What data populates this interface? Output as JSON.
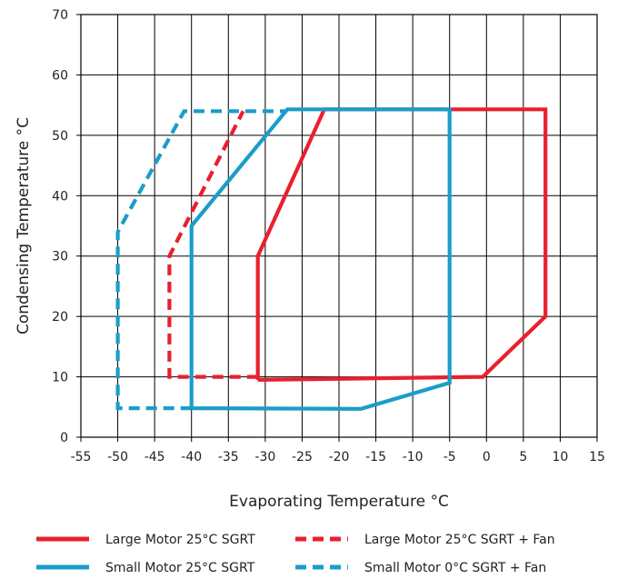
{
  "chart_data": {
    "type": "line",
    "title": "",
    "xlabel": "Evaporating Temperature °C",
    "ylabel": "Condensing Temperature °C",
    "xlim": [
      -55,
      15
    ],
    "ylim": [
      0,
      70
    ],
    "xticks": [
      -55,
      -50,
      -45,
      -40,
      -35,
      -30,
      -25,
      -20,
      -15,
      -10,
      -5,
      0,
      5,
      10,
      15
    ],
    "yticks": [
      0,
      10,
      20,
      30,
      40,
      50,
      60,
      70
    ],
    "grid": true,
    "legend_position": "bottom",
    "series": [
      {
        "name": "Large Motor 25°C SGRT",
        "color": "#e8202e",
        "style": "solid",
        "points": [
          [
            -31,
            9.5
          ],
          [
            -0.5,
            10
          ],
          [
            8,
            20
          ],
          [
            8,
            54.3
          ],
          [
            -22,
            54.3
          ],
          [
            -31,
            30
          ],
          [
            -31,
            9.5
          ]
        ]
      },
      {
        "name": "Large Motor 25°C SGRT + Fan",
        "color": "#e8202e",
        "style": "dashed",
        "points": [
          [
            -31,
            10
          ],
          [
            -43,
            10
          ],
          [
            -43,
            30
          ],
          [
            -33,
            54
          ]
        ]
      },
      {
        "name": "Small Motor 25°C SGRT",
        "color": "#1a9dc9",
        "style": "solid",
        "points": [
          [
            -40,
            4.8
          ],
          [
            -17,
            4.7
          ],
          [
            -5,
            9
          ],
          [
            -5,
            54.3
          ],
          [
            -27,
            54.3
          ],
          [
            -40,
            35
          ],
          [
            -40,
            4.8
          ]
        ]
      },
      {
        "name": "Small Motor 0°C SGRT + Fan",
        "color": "#1a9dc9",
        "style": "dashed",
        "points": [
          [
            -40,
            4.8
          ],
          [
            -50,
            4.8
          ],
          [
            -50,
            34
          ],
          [
            -41,
            54
          ],
          [
            -27,
            54
          ]
        ]
      }
    ]
  }
}
